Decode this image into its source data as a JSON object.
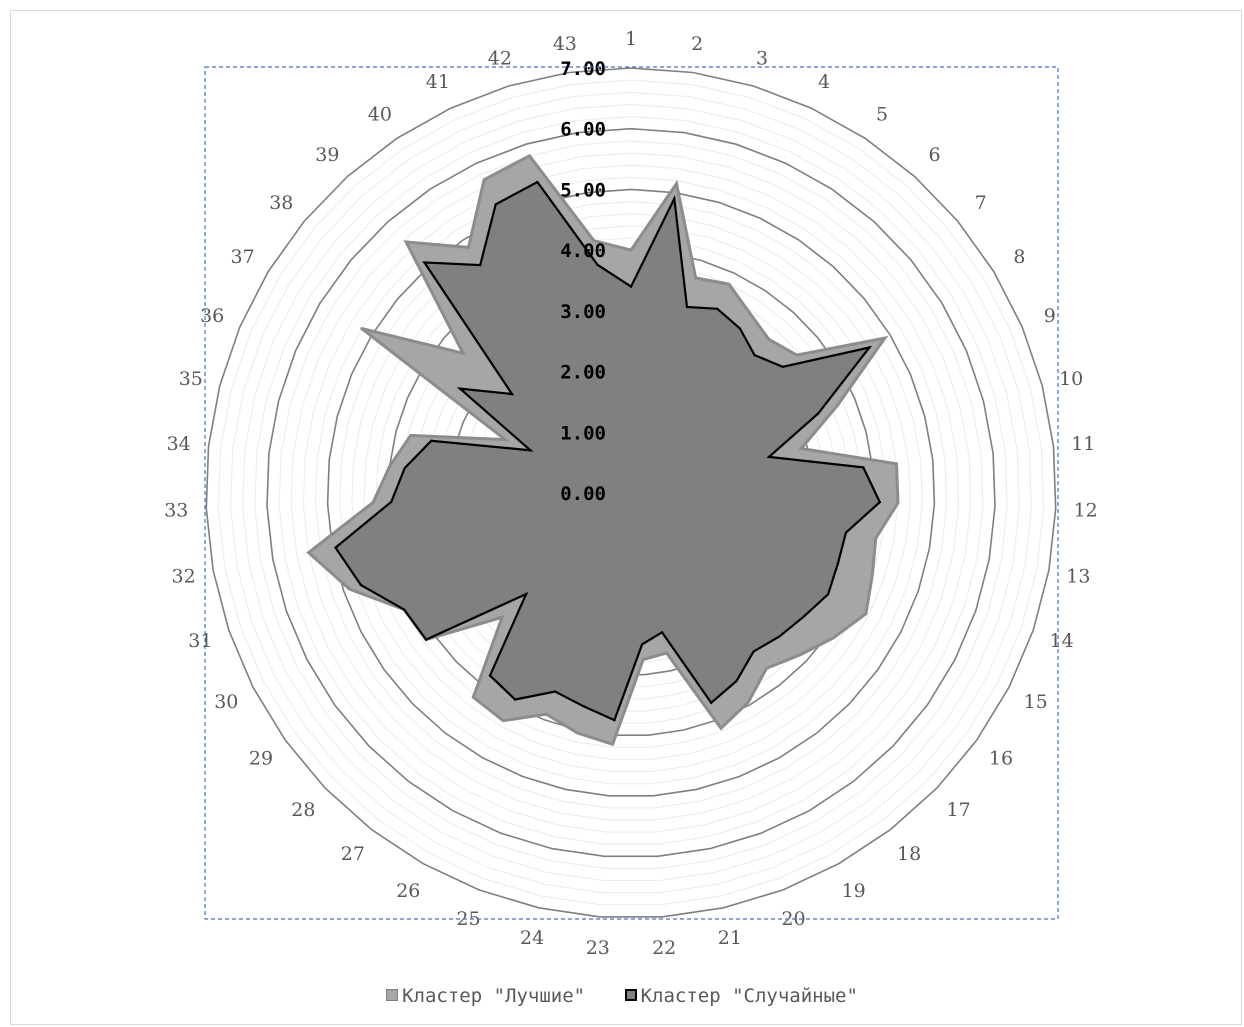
{
  "chart_data": {
    "type": "radar",
    "categories": [
      "1",
      "2",
      "3",
      "4",
      "5",
      "6",
      "7",
      "8",
      "9",
      "10",
      "11",
      "12",
      "13",
      "14",
      "15",
      "16",
      "17",
      "18",
      "19",
      "20",
      "21",
      "22",
      "23",
      "24",
      "25",
      "26",
      "27",
      "28",
      "29",
      "30",
      "31",
      "32",
      "33",
      "34",
      "35",
      "36",
      "37",
      "38",
      "39",
      "40",
      "41",
      "42",
      "43"
    ],
    "tick_labels": [
      "0.00",
      "1.00",
      "2.00",
      "3.00",
      "4.00",
      "5.00",
      "6.00",
      "7.00"
    ],
    "rlim": [
      0,
      7
    ],
    "legend_position": "bottom",
    "series": [
      {
        "name": "Кластер \"Лучшие\"",
        "color": "#a6a6a6",
        "values": [
          4.0,
          5.15,
          3.7,
          3.8,
          3.55,
          3.4,
          3.55,
          4.9,
          3.7,
          2.9,
          4.4,
          4.4,
          4.1,
          4.2,
          4.35,
          4.1,
          3.85,
          3.65,
          3.95,
          4.15,
          2.7,
          2.75,
          4.15,
          4.05,
          3.9,
          4.3,
          4.25,
          2.95,
          4.15,
          4.2,
          4.9,
          5.4,
          4.25,
          4.0,
          3.75,
          2.25,
          5.2,
          3.6,
          5.55,
          4.85,
          5.7,
          5.8,
          4.2
        ],
        "items": []
      },
      {
        "name": "Кластер \"Случайные\"",
        "color": "#000000",
        "values": [
          3.4,
          4.9,
          3.2,
          3.35,
          3.25,
          3.05,
          3.25,
          4.6,
          3.35,
          2.35,
          3.85,
          4.1,
          3.6,
          3.6,
          3.65,
          3.5,
          3.4,
          3.3,
          3.55,
          3.7,
          2.35,
          2.5,
          3.75,
          3.6,
          3.5,
          3.9,
          3.8,
          2.4,
          4.15,
          4.2,
          4.7,
          4.95,
          3.95,
          3.75,
          3.4,
          1.8,
          3.3,
          2.55,
          5.1,
          4.5,
          5.25,
          5.35,
          3.8
        ],
        "items": []
      }
    ]
  },
  "legend": {
    "items": [
      {
        "label": "Кластер \"Лучшие\""
      },
      {
        "label": "Кластер \"Случайные\""
      }
    ]
  }
}
